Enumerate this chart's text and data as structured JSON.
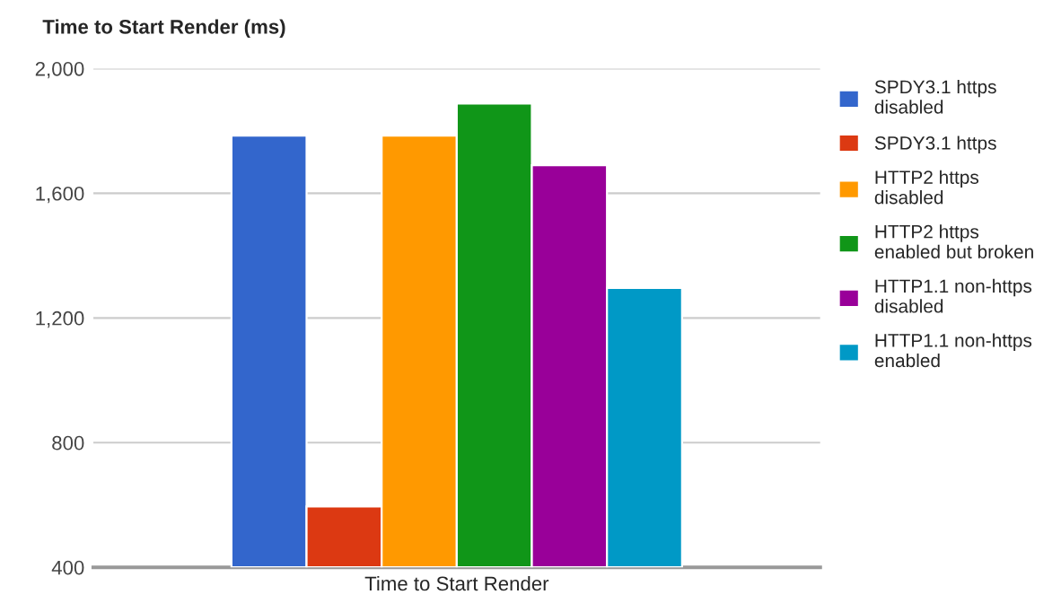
{
  "chart_data": {
    "type": "bar",
    "title": "Time to Start Render (ms)",
    "categories": [
      "Time to Start Render"
    ],
    "series": [
      {
        "name": "SPDY3.1 https\ndisabled",
        "color": "#3366cc",
        "values": [
          1785
        ]
      },
      {
        "name": "SPDY3.1 https",
        "color": "#dc3912",
        "values": [
          595
        ]
      },
      {
        "name": "HTTP2 https\ndisabled",
        "color": "#ff9900",
        "values": [
          1785
        ]
      },
      {
        "name": "HTTP2 https\nenabled but broken",
        "color": "#109618",
        "values": [
          1888
        ]
      },
      {
        "name": "HTTP1.1 non-https\ndisabled",
        "color": "#990099",
        "values": [
          1690
        ]
      },
      {
        "name": "HTTP1.1 non-https\nenabled",
        "color": "#0099c6",
        "values": [
          1296
        ]
      }
    ],
    "ylim": [
      400,
      2000
    ],
    "yticks": [
      {
        "value": 400,
        "label": "400"
      },
      {
        "value": 800,
        "label": "800"
      },
      {
        "value": 1200,
        "label": "1,200"
      },
      {
        "value": 1600,
        "label": "1,600"
      },
      {
        "value": 2000,
        "label": "2,000"
      }
    ],
    "grid": "y",
    "legend": "right"
  }
}
